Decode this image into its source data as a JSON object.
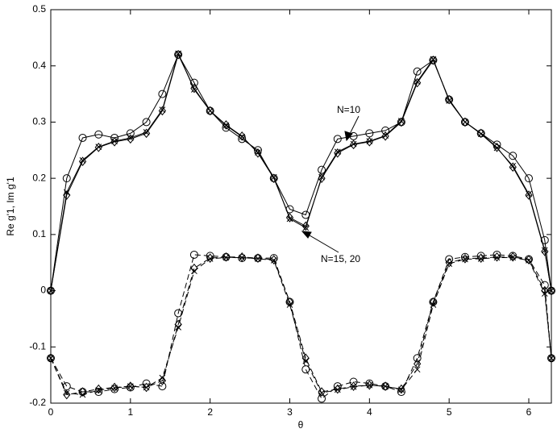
{
  "chart_data": {
    "type": "line",
    "x_label": "θ",
    "y_label": "Re g'1, Im g'1",
    "annotations": [
      "N=10",
      "N=15, 20"
    ],
    "xlim": [
      0,
      6.2832
    ],
    "ylim": [
      -0.2,
      0.5
    ],
    "xticks": [
      0,
      1,
      2,
      3,
      4,
      5,
      6
    ],
    "yticks": [
      -0.2,
      -0.1,
      0,
      0.1,
      0.2,
      0.3,
      0.4,
      0.5
    ],
    "x": [
      0,
      0.2,
      0.4,
      0.6,
      0.8,
      1.0,
      1.2,
      1.4,
      1.6,
      1.8,
      2.0,
      2.2,
      2.4,
      2.6,
      2.8,
      3.0,
      3.2,
      3.4,
      3.6,
      3.8,
      4.0,
      4.2,
      4.4,
      4.6,
      4.8,
      5.0,
      5.2,
      5.4,
      5.6,
      5.8,
      6.0,
      6.2,
      6.2832
    ],
    "series": [
      {
        "color": "#000000",
        "marker": "o",
        "dash": false,
        "values": [
          0,
          0.2,
          0.272,
          0.278,
          0.272,
          0.28,
          0.3,
          0.35,
          0.42,
          0.37,
          0.32,
          0.29,
          0.27,
          0.25,
          0.2,
          0.145,
          0.135,
          0.215,
          0.27,
          0.275,
          0.28,
          0.285,
          0.3,
          0.39,
          0.41,
          0.34,
          0.3,
          0.28,
          0.26,
          0.24,
          0.2,
          0.09,
          0
        ]
      },
      {
        "color": "#000000",
        "marker": "x",
        "dash": false,
        "values": [
          0,
          0.175,
          0.232,
          0.256,
          0.266,
          0.272,
          0.282,
          0.322,
          0.422,
          0.358,
          0.32,
          0.294,
          0.274,
          0.246,
          0.202,
          0.128,
          0.112,
          0.202,
          0.247,
          0.261,
          0.266,
          0.276,
          0.302,
          0.372,
          0.412,
          0.338,
          0.3,
          0.279,
          0.254,
          0.222,
          0.172,
          0.072,
          0
        ]
      },
      {
        "color": "#000000",
        "marker": "d",
        "dash": false,
        "values": [
          0,
          0.17,
          0.23,
          0.255,
          0.265,
          0.27,
          0.28,
          0.32,
          0.42,
          0.36,
          0.32,
          0.295,
          0.275,
          0.245,
          0.2,
          0.13,
          0.115,
          0.2,
          0.245,
          0.26,
          0.265,
          0.275,
          0.3,
          0.37,
          0.41,
          0.34,
          0.3,
          0.28,
          0.255,
          0.22,
          0.17,
          0.07,
          0
        ]
      },
      {
        "color": "#000000",
        "marker": "o",
        "dash": true,
        "values": [
          -0.12,
          -0.17,
          -0.18,
          -0.18,
          -0.175,
          -0.172,
          -0.165,
          -0.17,
          -0.04,
          0.064,
          0.062,
          0.06,
          0.058,
          0.058,
          0.058,
          -0.02,
          -0.14,
          -0.192,
          -0.17,
          -0.162,
          -0.165,
          -0.17,
          -0.18,
          -0.12,
          -0.02,
          0.056,
          0.06,
          0.062,
          0.064,
          0.062,
          0.056,
          0.01,
          -0.12
        ]
      },
      {
        "color": "#000000",
        "marker": "x",
        "dash": true,
        "values": [
          -0.12,
          -0.182,
          -0.185,
          -0.177,
          -0.173,
          -0.17,
          -0.172,
          -0.155,
          -0.065,
          0.035,
          0.057,
          0.059,
          0.059,
          0.057,
          0.054,
          -0.025,
          -0.125,
          -0.182,
          -0.176,
          -0.171,
          -0.168,
          -0.17,
          -0.176,
          -0.14,
          -0.025,
          0.048,
          0.056,
          0.057,
          0.059,
          0.059,
          0.054,
          -0.005,
          -0.12
        ]
      },
      {
        "color": "#000000",
        "marker": "d",
        "dash": true,
        "values": [
          -0.12,
          -0.185,
          -0.18,
          -0.175,
          -0.172,
          -0.17,
          -0.172,
          -0.16,
          -0.06,
          0.04,
          0.058,
          0.06,
          0.06,
          0.058,
          0.055,
          -0.02,
          -0.12,
          -0.18,
          -0.175,
          -0.17,
          -0.168,
          -0.17,
          -0.175,
          -0.13,
          -0.02,
          0.05,
          0.057,
          0.058,
          0.06,
          0.06,
          0.055,
          0.0,
          -0.12
        ]
      }
    ]
  }
}
